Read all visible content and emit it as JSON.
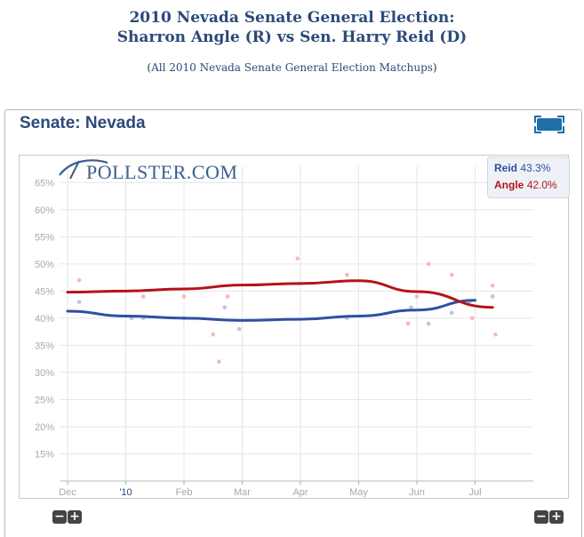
{
  "header": {
    "title_line1": "2010 Nevada Senate General Election:",
    "title_line2": "Sharron Angle (R) vs Sen. Harry Reid (D)",
    "subtitle_open": "(",
    "subtitle_link": "All 2010 Nevada Senate General Election Matchups",
    "subtitle_close": ")"
  },
  "widget": {
    "title": "Senate: Nevada",
    "expand_icon": "expand-icon",
    "logo_text": "POLLSTER.COM"
  },
  "legend": {
    "reid_name": "Reid",
    "reid_value": "43.3%",
    "angle_name": "Angle",
    "angle_value": "42.0%"
  },
  "zoom": {
    "minus": "−",
    "plus": "+"
  },
  "colors": {
    "reid": "#2f4fa3",
    "angle": "#b5121b",
    "reid_point": "#b9c6e6",
    "angle_point": "#f2b8bf"
  },
  "chart_data": {
    "type": "line",
    "title": "Senate: Nevada",
    "ylim": [
      10,
      68
    ],
    "y_ticks": [
      "15%",
      "20%",
      "25%",
      "30%",
      "35%",
      "40%",
      "45%",
      "50%",
      "55%",
      "60%",
      "65%"
    ],
    "x_ticks": [
      "Dec",
      "'10",
      "Feb",
      "Mar",
      "Apr",
      "May",
      "Jun",
      "Jul"
    ],
    "grid": true,
    "legend_position": "top-right",
    "series": [
      {
        "name": "Reid",
        "trend": [
          [
            0,
            41.3
          ],
          [
            1,
            40.4
          ],
          [
            2,
            40.0
          ],
          [
            3,
            39.6
          ],
          [
            4,
            39.8
          ],
          [
            5,
            40.4
          ],
          [
            6,
            41.5
          ],
          [
            7,
            43.3
          ]
        ],
        "polls": [
          [
            0.2,
            43
          ],
          [
            1.1,
            40
          ],
          [
            1.3,
            40
          ],
          [
            2.0,
            40
          ],
          [
            2.7,
            42
          ],
          [
            2.95,
            38
          ],
          [
            4.8,
            40
          ],
          [
            5.9,
            42
          ],
          [
            6.2,
            39
          ],
          [
            6.6,
            41
          ],
          [
            6.9,
            43
          ],
          [
            7.3,
            44
          ]
        ]
      },
      {
        "name": "Angle",
        "trend": [
          [
            0,
            44.8
          ],
          [
            1,
            45.0
          ],
          [
            2,
            45.4
          ],
          [
            3,
            46.1
          ],
          [
            4,
            46.4
          ],
          [
            5,
            46.9
          ],
          [
            6,
            44.9
          ],
          [
            7.3,
            42.0
          ]
        ],
        "polls": [
          [
            0.2,
            47
          ],
          [
            1.3,
            44
          ],
          [
            2.0,
            44
          ],
          [
            2.5,
            37
          ],
          [
            2.6,
            32
          ],
          [
            2.75,
            44
          ],
          [
            3.95,
            51
          ],
          [
            4.8,
            48
          ],
          [
            5.85,
            39
          ],
          [
            6.0,
            44
          ],
          [
            6.2,
            50
          ],
          [
            6.6,
            48
          ],
          [
            6.95,
            40
          ],
          [
            7.3,
            46
          ],
          [
            7.35,
            37
          ]
        ]
      }
    ]
  }
}
